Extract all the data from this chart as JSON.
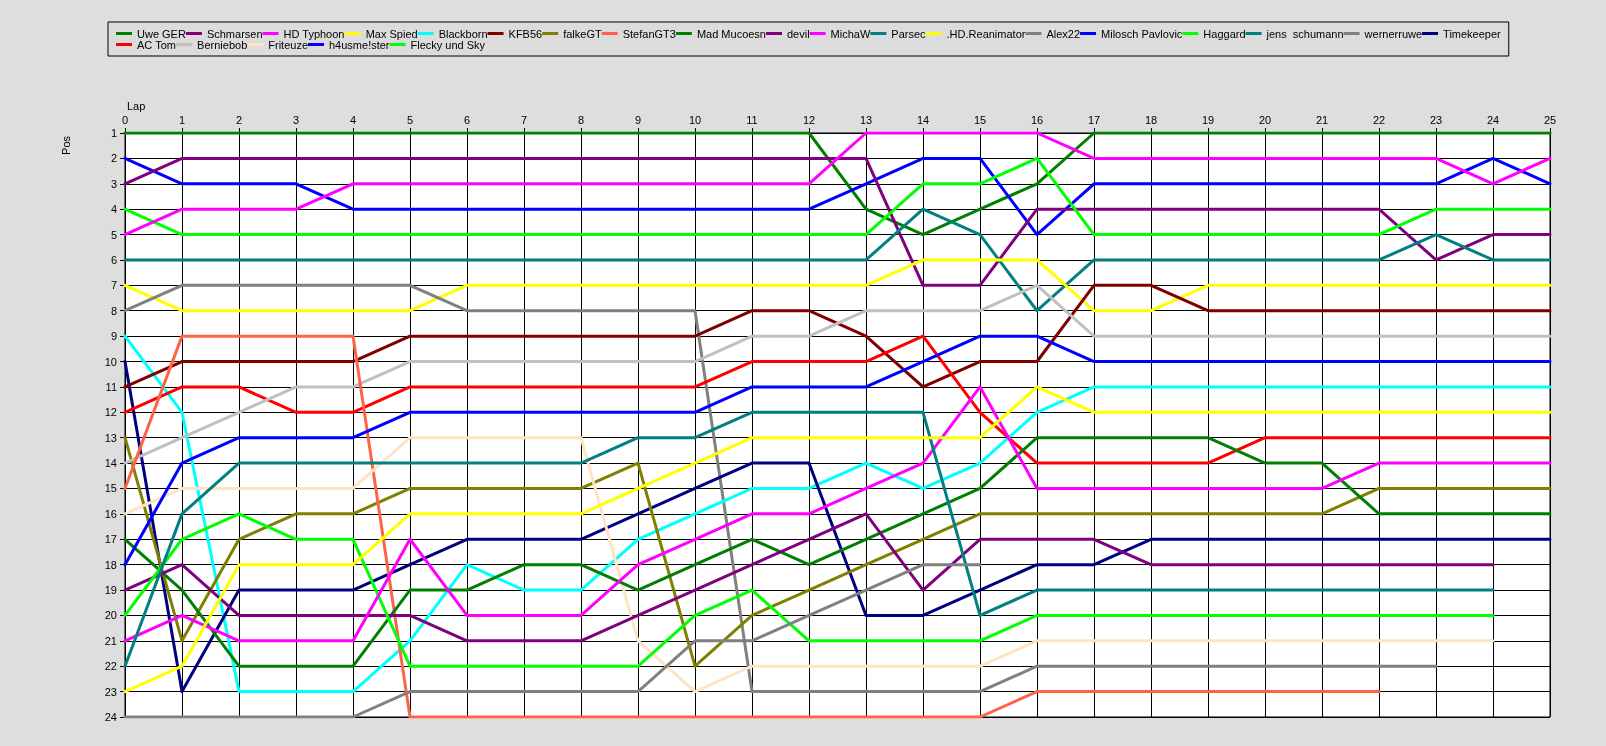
{
  "chart_data": {
    "type": "line",
    "xlabel": "Lap",
    "ylabel": "Pos",
    "x": [
      0,
      1,
      2,
      3,
      4,
      5,
      6,
      7,
      8,
      9,
      10,
      11,
      12,
      13,
      14,
      15,
      16,
      17,
      18,
      19,
      20,
      21,
      22,
      23,
      24,
      25
    ],
    "xlim": [
      0,
      25
    ],
    "xticks": [
      0,
      1,
      2,
      3,
      4,
      5,
      6,
      7,
      8,
      9,
      10,
      11,
      12,
      13,
      14,
      15,
      16,
      17,
      18,
      19,
      20,
      21,
      22,
      23,
      24,
      25
    ],
    "ylim": [
      24,
      1
    ],
    "yticks": [
      1,
      2,
      3,
      4,
      5,
      6,
      7,
      8,
      9,
      10,
      11,
      12,
      13,
      14,
      15,
      16,
      17,
      18,
      19,
      20,
      21,
      22,
      23,
      24
    ],
    "grid": true,
    "legend": "top",
    "marker": "none",
    "line_style": "solid",
    "series": [
      {
        "name": "Uwe GER",
        "color": "#008000",
        "values": [
          1,
          1,
          1,
          1,
          1,
          1,
          1,
          1,
          1,
          1,
          1,
          1,
          1,
          4,
          5,
          4,
          3,
          1,
          1,
          1,
          1,
          1,
          1,
          1,
          1,
          1
        ]
      },
      {
        "name": "Milosch Pavlovic",
        "color": "#0000ff",
        "values": [
          2,
          3,
          3,
          3,
          4,
          4,
          4,
          4,
          4,
          4,
          4,
          4,
          4,
          3,
          2,
          2,
          5,
          3,
          3,
          3,
          3,
          3,
          3,
          3,
          2,
          3
        ]
      },
      {
        "name": "Schmarsen",
        "color": "#800080",
        "values": [
          3,
          2,
          2,
          2,
          2,
          2,
          2,
          2,
          2,
          2,
          2,
          2,
          2,
          2,
          7,
          7,
          4,
          4,
          4,
          4,
          4,
          4,
          4,
          6,
          5,
          5
        ]
      },
      {
        "name": "Haggard",
        "color": "#00ff00",
        "values": [
          4,
          5,
          5,
          5,
          5,
          5,
          5,
          5,
          5,
          5,
          5,
          5,
          5,
          5,
          3,
          3,
          2,
          5,
          5,
          5,
          5,
          5,
          5,
          4,
          4,
          4
        ]
      },
      {
        "name": "HD Typhoon",
        "color": "#ff00ff",
        "values": [
          5,
          4,
          4,
          4,
          3,
          3,
          3,
          3,
          3,
          3,
          3,
          3,
          3,
          1,
          1,
          1,
          1,
          2,
          2,
          2,
          2,
          2,
          2,
          2,
          3,
          2
        ]
      },
      {
        "name": "jens  schumann",
        "color": "#008080",
        "values": [
          6,
          6,
          6,
          6,
          6,
          6,
          6,
          6,
          6,
          6,
          6,
          6,
          6,
          6,
          4,
          5,
          8,
          6,
          6,
          6,
          6,
          6,
          6,
          5,
          6,
          6
        ]
      },
      {
        "name": "Max Spied",
        "color": "#ffff00",
        "values": [
          7,
          8,
          8,
          8,
          8,
          8,
          7,
          7,
          7,
          7,
          7,
          7,
          7,
          7,
          6,
          6,
          6,
          8,
          8,
          7,
          7,
          7,
          7,
          7,
          7,
          7
        ]
      },
      {
        "name": "wernerruwe",
        "color": "#808080",
        "values": [
          8,
          7,
          7,
          7,
          7,
          7,
          8,
          8,
          8,
          8,
          8,
          23,
          23,
          23,
          23,
          23,
          22,
          22,
          22,
          22,
          22,
          22,
          22,
          22,
          null,
          null
        ]
      },
      {
        "name": "Blackborn",
        "color": "#00ffff",
        "values": [
          9,
          12,
          23,
          23,
          23,
          21,
          18,
          19,
          19,
          17,
          16,
          15,
          15,
          14,
          15,
          14,
          12,
          11,
          11,
          11,
          11,
          11,
          11,
          11,
          11,
          11
        ]
      },
      {
        "name": "Timekeeper",
        "color": "#000080",
        "values": [
          10,
          23,
          19,
          19,
          19,
          18,
          17,
          17,
          17,
          16,
          15,
          14,
          14,
          20,
          20,
          19,
          18,
          18,
          17,
          17,
          17,
          17,
          17,
          17,
          17,
          17
        ]
      },
      {
        "name": "KFB56",
        "color": "#800000",
        "values": [
          11,
          10,
          10,
          10,
          10,
          9,
          9,
          9,
          9,
          9,
          9,
          8,
          8,
          9,
          11,
          10,
          10,
          7,
          7,
          8,
          8,
          8,
          8,
          8,
          8,
          8
        ]
      },
      {
        "name": "AC Tom",
        "color": "#ff0000",
        "values": [
          12,
          11,
          11,
          12,
          12,
          11,
          11,
          11,
          11,
          11,
          11,
          10,
          10,
          10,
          9,
          12,
          14,
          14,
          14,
          14,
          13,
          13,
          13,
          13,
          13,
          13
        ]
      },
      {
        "name": "falkeGT",
        "color": "#808000",
        "values": [
          13,
          21,
          17,
          16,
          16,
          15,
          15,
          15,
          15,
          14,
          22,
          20,
          19,
          18,
          17,
          16,
          16,
          16,
          16,
          16,
          16,
          16,
          15,
          15,
          15,
          15
        ]
      },
      {
        "name": "Berniebob",
        "color": "#c0c0c0",
        "values": [
          14,
          13,
          12,
          11,
          11,
          10,
          10,
          10,
          10,
          10,
          10,
          9,
          9,
          8,
          8,
          8,
          7,
          9,
          9,
          9,
          9,
          9,
          9,
          9,
          9,
          9
        ]
      },
      {
        "name": "StefanGT3",
        "color": "#ff6347",
        "values": [
          15,
          9,
          9,
          9,
          9,
          24,
          24,
          24,
          24,
          24,
          24,
          24,
          24,
          24,
          24,
          24,
          23,
          23,
          23,
          23,
          23,
          23,
          23,
          null,
          null,
          null
        ]
      },
      {
        "name": "Friteuze",
        "color": "#ffe4c4",
        "values": [
          16,
          15,
          15,
          15,
          15,
          13,
          13,
          13,
          13,
          21,
          23,
          22,
          22,
          22,
          22,
          22,
          21,
          21,
          21,
          21,
          21,
          21,
          21,
          21,
          21,
          null
        ]
      },
      {
        "name": "Mad Mucoesn",
        "color": "#008000",
        "values": [
          17,
          19,
          22,
          22,
          22,
          19,
          19,
          18,
          18,
          19,
          18,
          17,
          18,
          17,
          16,
          15,
          13,
          13,
          13,
          13,
          14,
          14,
          16,
          16,
          16,
          16
        ]
      },
      {
        "name": "h4usme!ster",
        "color": "#0000ff",
        "values": [
          18,
          14,
          13,
          13,
          13,
          12,
          12,
          12,
          12,
          12,
          12,
          11,
          11,
          11,
          10,
          9,
          9,
          10,
          10,
          10,
          10,
          10,
          10,
          10,
          10,
          10
        ]
      },
      {
        "name": "devil",
        "color": "#800080",
        "values": [
          19,
          18,
          20,
          20,
          20,
          20,
          21,
          21,
          21,
          20,
          19,
          18,
          17,
          16,
          19,
          17,
          17,
          17,
          18,
          18,
          18,
          18,
          18,
          18,
          18,
          null
        ]
      },
      {
        "name": "Flecky und Sky",
        "color": "#00ff00",
        "values": [
          20,
          17,
          16,
          17,
          17,
          22,
          22,
          22,
          22,
          22,
          20,
          19,
          21,
          21,
          21,
          21,
          20,
          20,
          20,
          20,
          20,
          20,
          20,
          20,
          20,
          null
        ]
      },
      {
        "name": "MichaW",
        "color": "#ff00ff",
        "values": [
          21,
          20,
          21,
          21,
          21,
          17,
          20,
          20,
          20,
          18,
          17,
          16,
          16,
          15,
          14,
          11,
          15,
          15,
          15,
          15,
          15,
          15,
          14,
          14,
          14,
          14
        ]
      },
      {
        "name": "Parsec",
        "color": "#008080",
        "values": [
          22,
          16,
          14,
          14,
          14,
          14,
          14,
          14,
          14,
          13,
          13,
          12,
          12,
          12,
          12,
          20,
          19,
          19,
          19,
          19,
          19,
          19,
          19,
          19,
          19,
          null
        ]
      },
      {
        "name": ".HD.Reanimator",
        "color": "#ffff00",
        "values": [
          23,
          22,
          18,
          18,
          18,
          16,
          16,
          16,
          16,
          15,
          14,
          13,
          13,
          13,
          13,
          13,
          11,
          12,
          12,
          12,
          12,
          12,
          12,
          12,
          12,
          12
        ]
      },
      {
        "name": "Alex22",
        "color": "#808080",
        "values": [
          24,
          24,
          24,
          24,
          24,
          23,
          23,
          23,
          23,
          23,
          21,
          21,
          20,
          19,
          18,
          18,
          null,
          null,
          null,
          null,
          null,
          null,
          null,
          null,
          null,
          null
        ]
      }
    ]
  }
}
